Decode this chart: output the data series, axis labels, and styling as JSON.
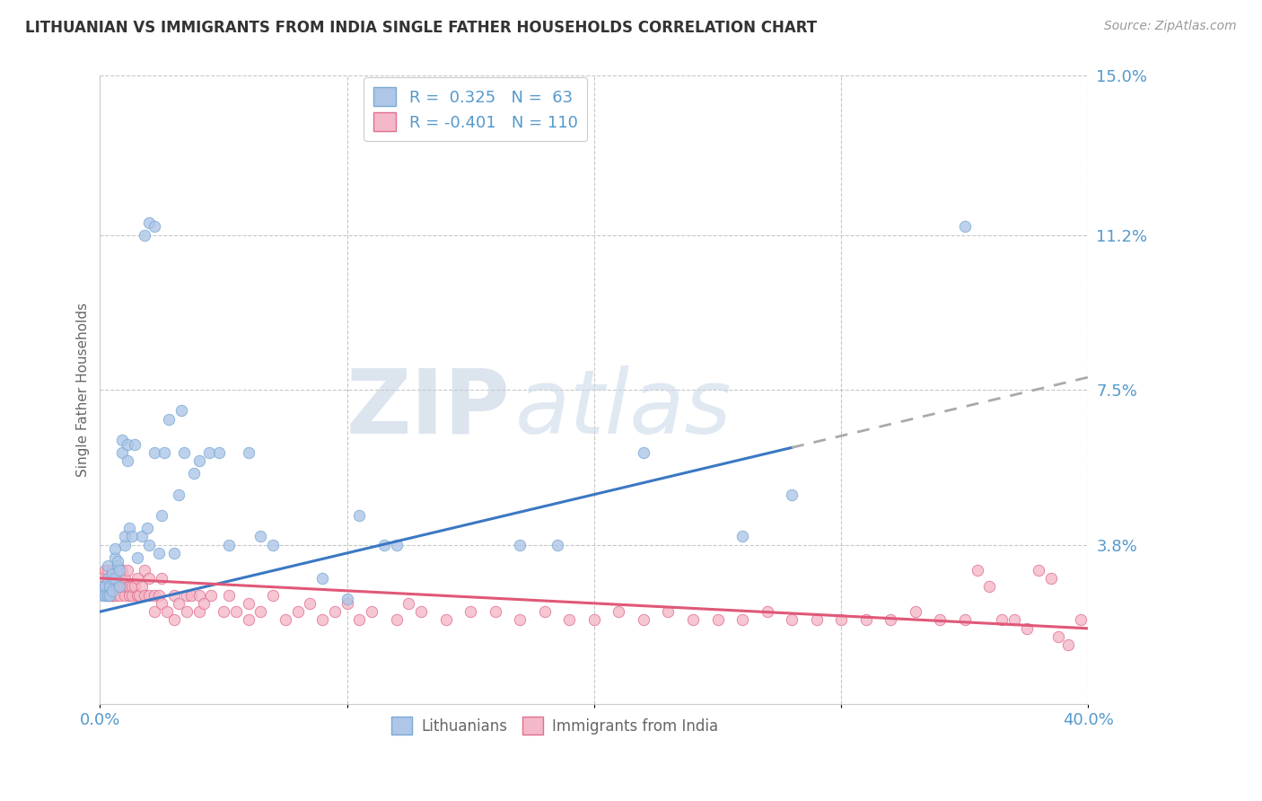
{
  "title": "LITHUANIAN VS IMMIGRANTS FROM INDIA SINGLE FATHER HOUSEHOLDS CORRELATION CHART",
  "source": "Source: ZipAtlas.com",
  "ylabel": "Single Father Households",
  "xlim": [
    0.0,
    0.4
  ],
  "ylim": [
    0.0,
    0.15
  ],
  "xticks": [
    0.0,
    0.1,
    0.2,
    0.3,
    0.4
  ],
  "xtick_labels": [
    "0.0%",
    "",
    "",
    "",
    "40.0%"
  ],
  "ytick_positions": [
    0.038,
    0.075,
    0.112,
    0.15
  ],
  "ytick_labels": [
    "3.8%",
    "7.5%",
    "11.2%",
    "15.0%"
  ],
  "series": [
    {
      "name": "Lithuanians",
      "R": 0.325,
      "N": 63,
      "color": "#aec6e8",
      "edge_color": "#7aaad4",
      "line_color": "#3b78c3",
      "dash_color": "#aaaaaa",
      "trend_start_x": 0.0,
      "trend_start_y": 0.022,
      "trend_solid_end_x": 0.28,
      "trend_end_x": 0.4,
      "trend_end_y": 0.078,
      "x": [
        0.001,
        0.001,
        0.002,
        0.002,
        0.003,
        0.003,
        0.003,
        0.004,
        0.004,
        0.005,
        0.005,
        0.005,
        0.006,
        0.006,
        0.006,
        0.007,
        0.007,
        0.008,
        0.008,
        0.009,
        0.009,
        0.01,
        0.01,
        0.011,
        0.011,
        0.012,
        0.013,
        0.014,
        0.015,
        0.017,
        0.019,
        0.02,
        0.022,
        0.024,
        0.025,
        0.026,
        0.028,
        0.03,
        0.032,
        0.033,
        0.034,
        0.038,
        0.04,
        0.044,
        0.048,
        0.052,
        0.06,
        0.065,
        0.07,
        0.09,
        0.1,
        0.105,
        0.115,
        0.12,
        0.17,
        0.185,
        0.22,
        0.26,
        0.28,
        0.35,
        0.02,
        0.018,
        0.022
      ],
      "y": [
        0.028,
        0.026,
        0.028,
        0.026,
        0.03,
        0.033,
        0.026,
        0.028,
        0.026,
        0.03,
        0.031,
        0.027,
        0.035,
        0.037,
        0.03,
        0.033,
        0.034,
        0.032,
        0.028,
        0.06,
        0.063,
        0.038,
        0.04,
        0.062,
        0.058,
        0.042,
        0.04,
        0.062,
        0.035,
        0.04,
        0.042,
        0.038,
        0.06,
        0.036,
        0.045,
        0.06,
        0.068,
        0.036,
        0.05,
        0.07,
        0.06,
        0.055,
        0.058,
        0.06,
        0.06,
        0.038,
        0.06,
        0.04,
        0.038,
        0.03,
        0.025,
        0.045,
        0.038,
        0.038,
        0.038,
        0.038,
        0.06,
        0.04,
        0.05,
        0.114,
        0.115,
        0.112,
        0.114
      ]
    },
    {
      "name": "Immigrants from India",
      "R": -0.401,
      "N": 110,
      "color": "#f4b8c8",
      "edge_color": "#e07090",
      "line_color": "#e05878",
      "trend_start_x": 0.0,
      "trend_start_y": 0.03,
      "trend_end_x": 0.4,
      "trend_end_y": 0.018,
      "x": [
        0.001,
        0.001,
        0.002,
        0.002,
        0.002,
        0.003,
        0.003,
        0.003,
        0.004,
        0.004,
        0.004,
        0.005,
        0.005,
        0.005,
        0.005,
        0.006,
        0.006,
        0.006,
        0.007,
        0.007,
        0.007,
        0.008,
        0.008,
        0.008,
        0.009,
        0.009,
        0.01,
        0.01,
        0.01,
        0.011,
        0.011,
        0.012,
        0.012,
        0.013,
        0.013,
        0.014,
        0.015,
        0.015,
        0.016,
        0.017,
        0.018,
        0.018,
        0.02,
        0.02,
        0.022,
        0.022,
        0.024,
        0.025,
        0.025,
        0.027,
        0.03,
        0.03,
        0.032,
        0.035,
        0.035,
        0.037,
        0.04,
        0.04,
        0.042,
        0.045,
        0.05,
        0.052,
        0.055,
        0.06,
        0.06,
        0.065,
        0.07,
        0.075,
        0.08,
        0.085,
        0.09,
        0.095,
        0.1,
        0.105,
        0.11,
        0.12,
        0.125,
        0.13,
        0.14,
        0.15,
        0.16,
        0.17,
        0.18,
        0.19,
        0.2,
        0.21,
        0.22,
        0.23,
        0.24,
        0.25,
        0.26,
        0.27,
        0.28,
        0.29,
        0.3,
        0.31,
        0.32,
        0.33,
        0.34,
        0.35,
        0.355,
        0.36,
        0.365,
        0.37,
        0.375,
        0.38,
        0.385,
        0.388,
        0.392,
        0.397
      ],
      "y": [
        0.03,
        0.028,
        0.026,
        0.028,
        0.032,
        0.026,
        0.028,
        0.032,
        0.026,
        0.028,
        0.03,
        0.028,
        0.026,
        0.032,
        0.026,
        0.03,
        0.028,
        0.026,
        0.03,
        0.028,
        0.032,
        0.028,
        0.026,
        0.03,
        0.028,
        0.032,
        0.026,
        0.028,
        0.03,
        0.028,
        0.032,
        0.028,
        0.026,
        0.026,
        0.028,
        0.028,
        0.026,
        0.03,
        0.026,
        0.028,
        0.026,
        0.032,
        0.03,
        0.026,
        0.022,
        0.026,
        0.026,
        0.024,
        0.03,
        0.022,
        0.026,
        0.02,
        0.024,
        0.026,
        0.022,
        0.026,
        0.026,
        0.022,
        0.024,
        0.026,
        0.022,
        0.026,
        0.022,
        0.02,
        0.024,
        0.022,
        0.026,
        0.02,
        0.022,
        0.024,
        0.02,
        0.022,
        0.024,
        0.02,
        0.022,
        0.02,
        0.024,
        0.022,
        0.02,
        0.022,
        0.022,
        0.02,
        0.022,
        0.02,
        0.02,
        0.022,
        0.02,
        0.022,
        0.02,
        0.02,
        0.02,
        0.022,
        0.02,
        0.02,
        0.02,
        0.02,
        0.02,
        0.022,
        0.02,
        0.02,
        0.032,
        0.028,
        0.02,
        0.02,
        0.018,
        0.032,
        0.03,
        0.016,
        0.014,
        0.02
      ]
    }
  ],
  "watermark_zip_color": "#c0cfe0",
  "watermark_atlas_color": "#c8d8e8",
  "watermark_alpha": 0.55,
  "background_color": "#ffffff",
  "grid_color": "#c8c8c8",
  "grid_style": "--",
  "title_fontsize": 12,
  "axis_label_color": "#5599cc",
  "legend_color": "#5599cc"
}
